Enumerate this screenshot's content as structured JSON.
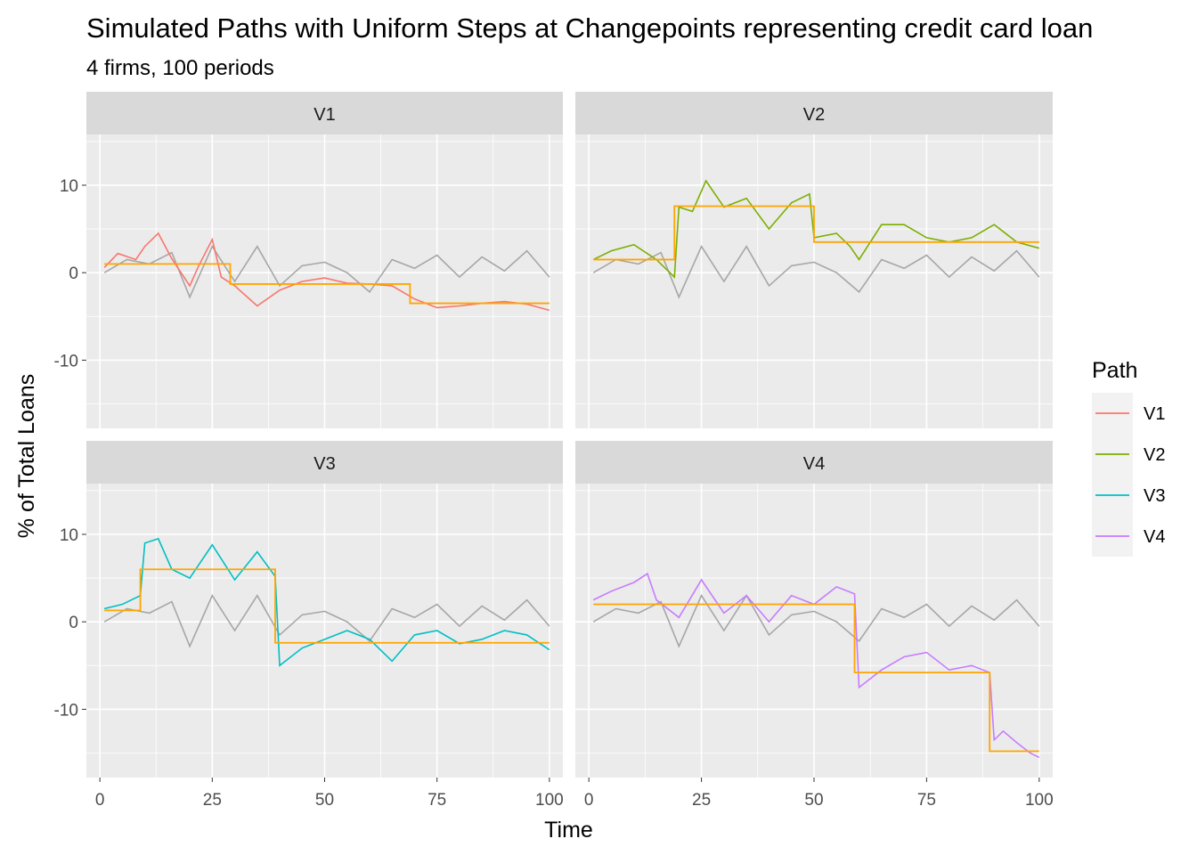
{
  "chart_data": {
    "type": "line",
    "title": "Simulated Paths with Uniform Steps at Changepoints representing credit card loan",
    "subtitle": "4 firms, 100 periods",
    "xlabel": "Time",
    "ylabel": "% of Total Loans",
    "xlim": [
      -3,
      103
    ],
    "ylim": [
      -17.8,
      15.8
    ],
    "x_ticks": [
      0,
      25,
      50,
      75,
      100
    ],
    "y_ticks": [
      -10,
      0,
      10
    ],
    "grid": true,
    "legend": {
      "title": "Path",
      "position": "right",
      "entries": [
        {
          "label": "V1",
          "color": "#F8766D"
        },
        {
          "label": "V2",
          "color": "#7CAE00"
        },
        {
          "label": "V3",
          "color": "#00BFC4"
        },
        {
          "label": "V4",
          "color": "#C77CFF"
        }
      ]
    },
    "reference_series": {
      "color": "#A6A6A6",
      "x": [
        1,
        6,
        11,
        16,
        20,
        25,
        30,
        35,
        40,
        45,
        50,
        55,
        60,
        65,
        70,
        75,
        80,
        85,
        90,
        95,
        100
      ],
      "y": [
        0,
        1.5,
        1,
        2.3,
        -2.8,
        3,
        -1,
        3,
        -1.5,
        0.8,
        1.2,
        0,
        -2.2,
        1.5,
        0.5,
        2,
        -0.5,
        1.8,
        0.2,
        2.5,
        -0.5
      ]
    },
    "panels": [
      {
        "name": "V1",
        "color": "#F8766D",
        "x": [
          1,
          4,
          8,
          10,
          13,
          16,
          20,
          22,
          25,
          27,
          30,
          35,
          40,
          45,
          50,
          55,
          60,
          65,
          70,
          75,
          80,
          85,
          90,
          95,
          100
        ],
        "y": [
          0.6,
          2.2,
          1.5,
          3,
          4.5,
          1.6,
          -1.5,
          0.8,
          3.8,
          -0.5,
          -1.5,
          -3.8,
          -2,
          -1,
          -0.6,
          -1.2,
          -1.3,
          -1.5,
          -3,
          -4,
          -3.8,
          -3.5,
          -3.3,
          -3.6,
          -4.3
        ],
        "step_x": [
          1,
          29,
          29,
          69,
          69,
          100
        ],
        "step_y": [
          1,
          1,
          -1.3,
          -1.3,
          -3.5,
          -3.5
        ]
      },
      {
        "name": "V2",
        "color": "#7CAE00",
        "x": [
          1,
          5,
          10,
          15,
          19,
          20,
          23,
          26,
          30,
          35,
          40,
          45,
          49,
          50,
          55,
          58,
          60,
          65,
          70,
          75,
          80,
          85,
          90,
          95,
          100
        ],
        "y": [
          1.5,
          2.5,
          3.2,
          1.5,
          -0.5,
          7.5,
          7,
          10.5,
          7.5,
          8.5,
          5,
          8,
          9,
          4,
          4.5,
          3,
          1.5,
          5.5,
          5.5,
          4,
          3.5,
          4,
          5.5,
          3.5,
          2.8
        ],
        "step_x": [
          1,
          19,
          19,
          50,
          50,
          100
        ],
        "step_y": [
          1.5,
          1.5,
          7.6,
          7.6,
          3.5,
          3.5
        ]
      },
      {
        "name": "V3",
        "color": "#00BFC4",
        "x": [
          1,
          5,
          9,
          10,
          13,
          16,
          20,
          25,
          30,
          35,
          39,
          40,
          45,
          50,
          55,
          60,
          65,
          70,
          75,
          80,
          85,
          90,
          95,
          100
        ],
        "y": [
          1.5,
          2,
          3,
          9,
          9.5,
          6,
          5,
          8.8,
          4.8,
          8,
          5.2,
          -5,
          -3,
          -2,
          -1,
          -2,
          -4.5,
          -1.5,
          -1,
          -2.5,
          -2,
          -1,
          -1.5,
          -3.2
        ],
        "step_x": [
          1,
          9,
          9,
          39,
          39,
          100
        ],
        "step_y": [
          1.3,
          1.3,
          6,
          6,
          -2.4,
          -2.4
        ]
      },
      {
        "name": "V4",
        "color": "#C77CFF",
        "x": [
          1,
          5,
          10,
          13,
          15,
          20,
          25,
          30,
          35,
          40,
          45,
          50,
          55,
          59,
          60,
          65,
          70,
          75,
          80,
          85,
          89,
          90,
          92,
          95,
          98,
          100
        ],
        "y": [
          2.5,
          3.5,
          4.5,
          5.5,
          2.5,
          0.5,
          4.8,
          1,
          3,
          0,
          3,
          2,
          4,
          3.2,
          -7.5,
          -5.5,
          -4,
          -3.5,
          -5.5,
          -5,
          -5.8,
          -13.5,
          -12.5,
          -13.8,
          -15,
          -15.5
        ],
        "step_x": [
          1,
          59,
          59,
          89,
          89,
          100
        ],
        "step_y": [
          2,
          2,
          -5.8,
          -5.8,
          -14.8,
          -14.8
        ]
      }
    ]
  }
}
